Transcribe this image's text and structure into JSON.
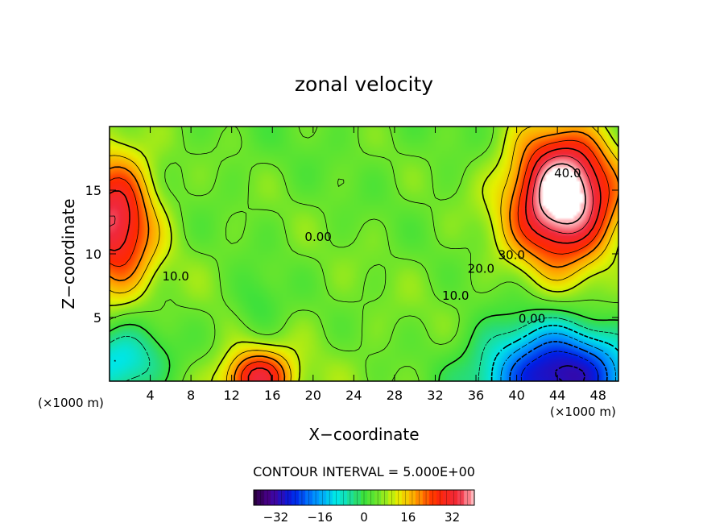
{
  "chart_data": {
    "type": "heatmap",
    "title": "zonal velocity",
    "xlabel": "X−coordinate",
    "ylabel": "Z−coordinate",
    "x_unit_left": "(×1000 m)",
    "x_unit_right": "(×1000 m)",
    "xlim": [
      0,
      50
    ],
    "ylim": [
      0,
      20
    ],
    "x_ticks": [
      4,
      8,
      12,
      16,
      20,
      24,
      28,
      32,
      36,
      40,
      44,
      48
    ],
    "x_tick_labels": [
      "4",
      "8",
      "12",
      "16",
      "20",
      "24",
      "28",
      "32",
      "36",
      "40",
      "44",
      "48"
    ],
    "y_ticks": [
      5,
      10,
      15
    ],
    "y_tick_labels": [
      "5",
      "10",
      "15"
    ],
    "contour_interval_text": "CONTOUR INTERVAL = 5.000E+00",
    "contour_interval": 5.0,
    "contour_labels": [
      {
        "text": "0.00",
        "x": 20.5,
        "y": 11.0
      },
      {
        "text": "0.00",
        "x": 41.5,
        "y": 4.6
      },
      {
        "text": "10.0",
        "x": 6.5,
        "y": 7.9
      },
      {
        "text": "10.0",
        "x": 34.0,
        "y": 6.4
      },
      {
        "text": "20.0",
        "x": 36.5,
        "y": 8.5
      },
      {
        "text": "30.0",
        "x": 39.5,
        "y": 9.6
      },
      {
        "text": "40.0",
        "x": 45.0,
        "y": 16.0
      }
    ],
    "features": [
      {
        "kind": "max",
        "x": 44.5,
        "y": 14.5,
        "value": 45,
        "rx": 5.0,
        "ry": 5.0
      },
      {
        "kind": "max",
        "x": 0.5,
        "y": 12.5,
        "value": 30,
        "rx": 3.8,
        "ry": 5.5
      },
      {
        "kind": "max",
        "x": 14.5,
        "y": 0.2,
        "value": 28,
        "rx": 3.2,
        "ry": 2.2
      },
      {
        "kind": "min",
        "x": 44.0,
        "y": 0.3,
        "value": -38,
        "rx": 7.5,
        "ry": 4.0
      },
      {
        "kind": "min",
        "x": 1.0,
        "y": 1.5,
        "value": -18,
        "rx": 4.5,
        "ry": 3.0
      },
      {
        "kind": "min",
        "x": 14.5,
        "y": 6.0,
        "value": -6,
        "rx": 2.5,
        "ry": 2.5
      }
    ],
    "colorbar": {
      "range": [
        -40,
        40
      ],
      "ticks": [
        -32,
        -16,
        0,
        16,
        32
      ],
      "tick_labels": [
        "−32",
        "−16",
        "0",
        "16",
        "32"
      ]
    },
    "colors": {
      "strong_negative": "#3a0090",
      "negative": "#0040ff",
      "zero": "#40e040",
      "positive": "#ffff00",
      "strong_positive": "#ff0000"
    }
  }
}
